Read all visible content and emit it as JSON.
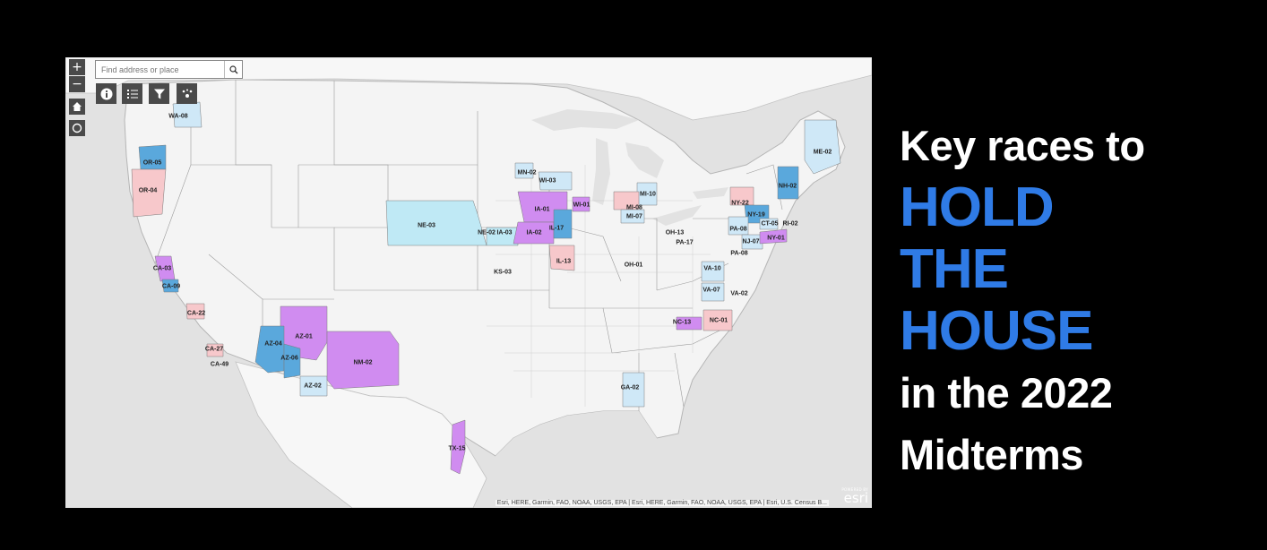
{
  "map": {
    "search_placeholder": "Find address or place",
    "attribution": "Esri, HERE, Garmin, FAO, NOAA, USGS, EPA | Esri, HERE, Garmin, FAO, NOAA, USGS, EPA | Esri, U.S. Census B...",
    "esri_powered": "POWERED BY",
    "esri_name": "esri",
    "controls": {
      "zoom_in": "+",
      "zoom_out": "−",
      "home_icon": "home-icon",
      "locate_icon": "locate-icon",
      "info_icon": "info-icon",
      "legend_icon": "list-icon",
      "filter_icon": "filter-icon",
      "layers_icon": "layers-icon",
      "search_icon": "search-icon"
    },
    "colors": {
      "land": "#f4f4f4",
      "water": "#e2e2e2",
      "borders": "#9a9a9a",
      "light_blue": "#cfe8f7",
      "cyan": "#bfe9f5",
      "blue": "#5aa8dc",
      "purple": "#d08cf0",
      "pink": "#f7c8cb"
    },
    "districts": [
      {
        "id": "WA-08",
        "label": "WA-08"
      },
      {
        "id": "OR-05",
        "label": "OR-05"
      },
      {
        "id": "OR-04",
        "label": "OR-04"
      },
      {
        "id": "CA-03",
        "label": "CA-03"
      },
      {
        "id": "CA-09",
        "label": "CA-09"
      },
      {
        "id": "CA-22",
        "label": "CA-22"
      },
      {
        "id": "CA-27",
        "label": "CA-27"
      },
      {
        "id": "CA-49",
        "label": "CA-49"
      },
      {
        "id": "AZ-01",
        "label": "AZ-01"
      },
      {
        "id": "AZ-04",
        "label": "AZ-04"
      },
      {
        "id": "AZ-06",
        "label": "AZ-06"
      },
      {
        "id": "AZ-02",
        "label": "AZ-02"
      },
      {
        "id": "NM-02",
        "label": "NM-02"
      },
      {
        "id": "NE-03",
        "label": "NE-03"
      },
      {
        "id": "NE-02",
        "label": "NE-02"
      },
      {
        "id": "IA-03",
        "label": "IA-03"
      },
      {
        "id": "IA-01",
        "label": "IA-01"
      },
      {
        "id": "IA-02",
        "label": "IA-02"
      },
      {
        "id": "KS-03",
        "label": "KS-03"
      },
      {
        "id": "MN-02",
        "label": "MN-02"
      },
      {
        "id": "WI-03",
        "label": "WI-03"
      },
      {
        "id": "WI-01",
        "label": "WI-01"
      },
      {
        "id": "IL-17",
        "label": "IL-17"
      },
      {
        "id": "IL-13",
        "label": "IL-13"
      },
      {
        "id": "MI-10",
        "label": "MI-10"
      },
      {
        "id": "MI-08",
        "label": "MI-08"
      },
      {
        "id": "MI-07",
        "label": "MI-07"
      },
      {
        "id": "OH-13",
        "label": "OH-13"
      },
      {
        "id": "OH-01",
        "label": "OH-01"
      },
      {
        "id": "PA-17",
        "label": "PA-17"
      },
      {
        "id": "PA-08",
        "label": "PA-08"
      },
      {
        "id": "PA-08b",
        "label": "PA-08"
      },
      {
        "id": "NY-22",
        "label": "NY-22"
      },
      {
        "id": "NY-19",
        "label": "NY-19"
      },
      {
        "id": "NY-01",
        "label": "NY-01"
      },
      {
        "id": "NJ-07",
        "label": "NJ-07"
      },
      {
        "id": "CT-05",
        "label": "CT-05"
      },
      {
        "id": "RI-02",
        "label": "RI-02"
      },
      {
        "id": "NH-02",
        "label": "NH-02"
      },
      {
        "id": "ME-02",
        "label": "ME-02"
      },
      {
        "id": "VA-10",
        "label": "VA-10"
      },
      {
        "id": "VA-07",
        "label": "VA-07"
      },
      {
        "id": "VA-02",
        "label": "VA-02"
      },
      {
        "id": "NC-13",
        "label": "NC-13"
      },
      {
        "id": "NC-01",
        "label": "NC-01"
      },
      {
        "id": "GA-02",
        "label": "GA-02"
      },
      {
        "id": "TX-15",
        "label": "TX-15"
      }
    ]
  },
  "headline": {
    "line1": "Key races to",
    "line2": "HOLD",
    "line3": "THE",
    "line4": "HOUSE",
    "line5": "in the 2022",
    "line6": "Midterms",
    "accent_color": "#2f7be6"
  }
}
